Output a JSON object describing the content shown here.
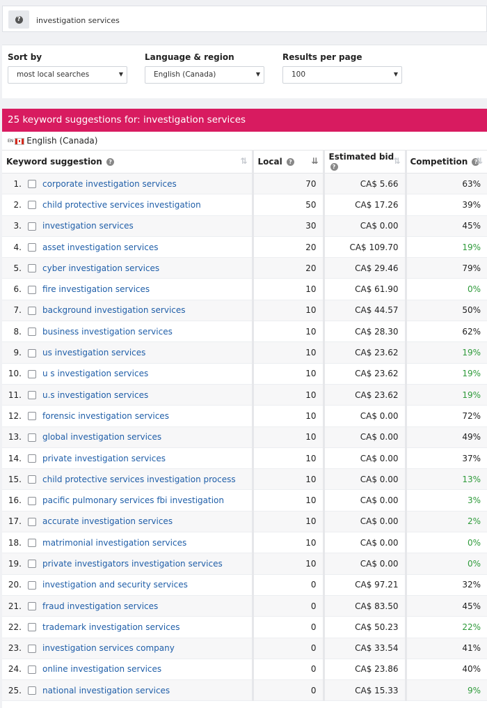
{
  "search": {
    "value": "investigation services",
    "help_icon": "question-icon"
  },
  "filters": {
    "sort_by": {
      "label": "Sort by",
      "value": "most local searches"
    },
    "language_region": {
      "label": "Language & region",
      "value": "English (Canada)"
    },
    "results_per_page": {
      "label": "Results per page",
      "value": "100"
    }
  },
  "results": {
    "header": "25 keyword suggestions for: investigation services",
    "lang_tag": "EN",
    "language": "English (Canada)",
    "columns": {
      "keyword": "Keyword suggestion",
      "local": "Local",
      "bid": "Estimated bid",
      "competition": "Competition"
    },
    "colors": {
      "header": "#d81b60",
      "link": "#1f5ea8",
      "green": "#2e9a3a"
    },
    "rows": [
      {
        "n": "1.",
        "kw": "corporate investigation services",
        "local": "70",
        "bid": "CA$ 5.66",
        "comp": "63%",
        "green": false
      },
      {
        "n": "2.",
        "kw": "child protective services investigation",
        "local": "50",
        "bid": "CA$ 17.26",
        "comp": "39%",
        "green": false
      },
      {
        "n": "3.",
        "kw": "investigation services",
        "local": "30",
        "bid": "CA$ 0.00",
        "comp": "45%",
        "green": false
      },
      {
        "n": "4.",
        "kw": "asset investigation services",
        "local": "20",
        "bid": "CA$ 109.70",
        "comp": "19%",
        "green": true
      },
      {
        "n": "5.",
        "kw": "cyber investigation services",
        "local": "20",
        "bid": "CA$ 29.46",
        "comp": "79%",
        "green": false
      },
      {
        "n": "6.",
        "kw": "fire investigation services",
        "local": "10",
        "bid": "CA$ 61.90",
        "comp": "0%",
        "green": true
      },
      {
        "n": "7.",
        "kw": "background investigation services",
        "local": "10",
        "bid": "CA$ 44.57",
        "comp": "50%",
        "green": false
      },
      {
        "n": "8.",
        "kw": "business investigation services",
        "local": "10",
        "bid": "CA$ 28.30",
        "comp": "62%",
        "green": false
      },
      {
        "n": "9.",
        "kw": "us investigation services",
        "local": "10",
        "bid": "CA$ 23.62",
        "comp": "19%",
        "green": true
      },
      {
        "n": "10.",
        "kw": "u s investigation services",
        "local": "10",
        "bid": "CA$ 23.62",
        "comp": "19%",
        "green": true
      },
      {
        "n": "11.",
        "kw": "u.s investigation services",
        "local": "10",
        "bid": "CA$ 23.62",
        "comp": "19%",
        "green": true
      },
      {
        "n": "12.",
        "kw": "forensic investigation services",
        "local": "10",
        "bid": "CA$ 0.00",
        "comp": "72%",
        "green": false
      },
      {
        "n": "13.",
        "kw": "global investigation services",
        "local": "10",
        "bid": "CA$ 0.00",
        "comp": "49%",
        "green": false
      },
      {
        "n": "14.",
        "kw": "private investigation services",
        "local": "10",
        "bid": "CA$ 0.00",
        "comp": "37%",
        "green": false
      },
      {
        "n": "15.",
        "kw": "child protective services investigation process",
        "local": "10",
        "bid": "CA$ 0.00",
        "comp": "13%",
        "green": true
      },
      {
        "n": "16.",
        "kw": "pacific pulmonary services fbi investigation",
        "local": "10",
        "bid": "CA$ 0.00",
        "comp": "3%",
        "green": true
      },
      {
        "n": "17.",
        "kw": "accurate investigation services",
        "local": "10",
        "bid": "CA$ 0.00",
        "comp": "2%",
        "green": true
      },
      {
        "n": "18.",
        "kw": "matrimonial investigation services",
        "local": "10",
        "bid": "CA$ 0.00",
        "comp": "0%",
        "green": true
      },
      {
        "n": "19.",
        "kw": "private investigators investigation services",
        "local": "10",
        "bid": "CA$ 0.00",
        "comp": "0%",
        "green": true
      },
      {
        "n": "20.",
        "kw": "investigation and security services",
        "local": "0",
        "bid": "CA$ 97.21",
        "comp": "32%",
        "green": false
      },
      {
        "n": "21.",
        "kw": "fraud investigation services",
        "local": "0",
        "bid": "CA$ 83.50",
        "comp": "45%",
        "green": false
      },
      {
        "n": "22.",
        "kw": "trademark investigation services",
        "local": "0",
        "bid": "CA$ 50.23",
        "comp": "22%",
        "green": true
      },
      {
        "n": "23.",
        "kw": "investigation services company",
        "local": "0",
        "bid": "CA$ 33.54",
        "comp": "41%",
        "green": false
      },
      {
        "n": "24.",
        "kw": "online investigation services",
        "local": "0",
        "bid": "CA$ 23.86",
        "comp": "40%",
        "green": false
      },
      {
        "n": "25.",
        "kw": "national investigation services",
        "local": "0",
        "bid": "CA$ 15.33",
        "comp": "9%",
        "green": true
      }
    ]
  }
}
